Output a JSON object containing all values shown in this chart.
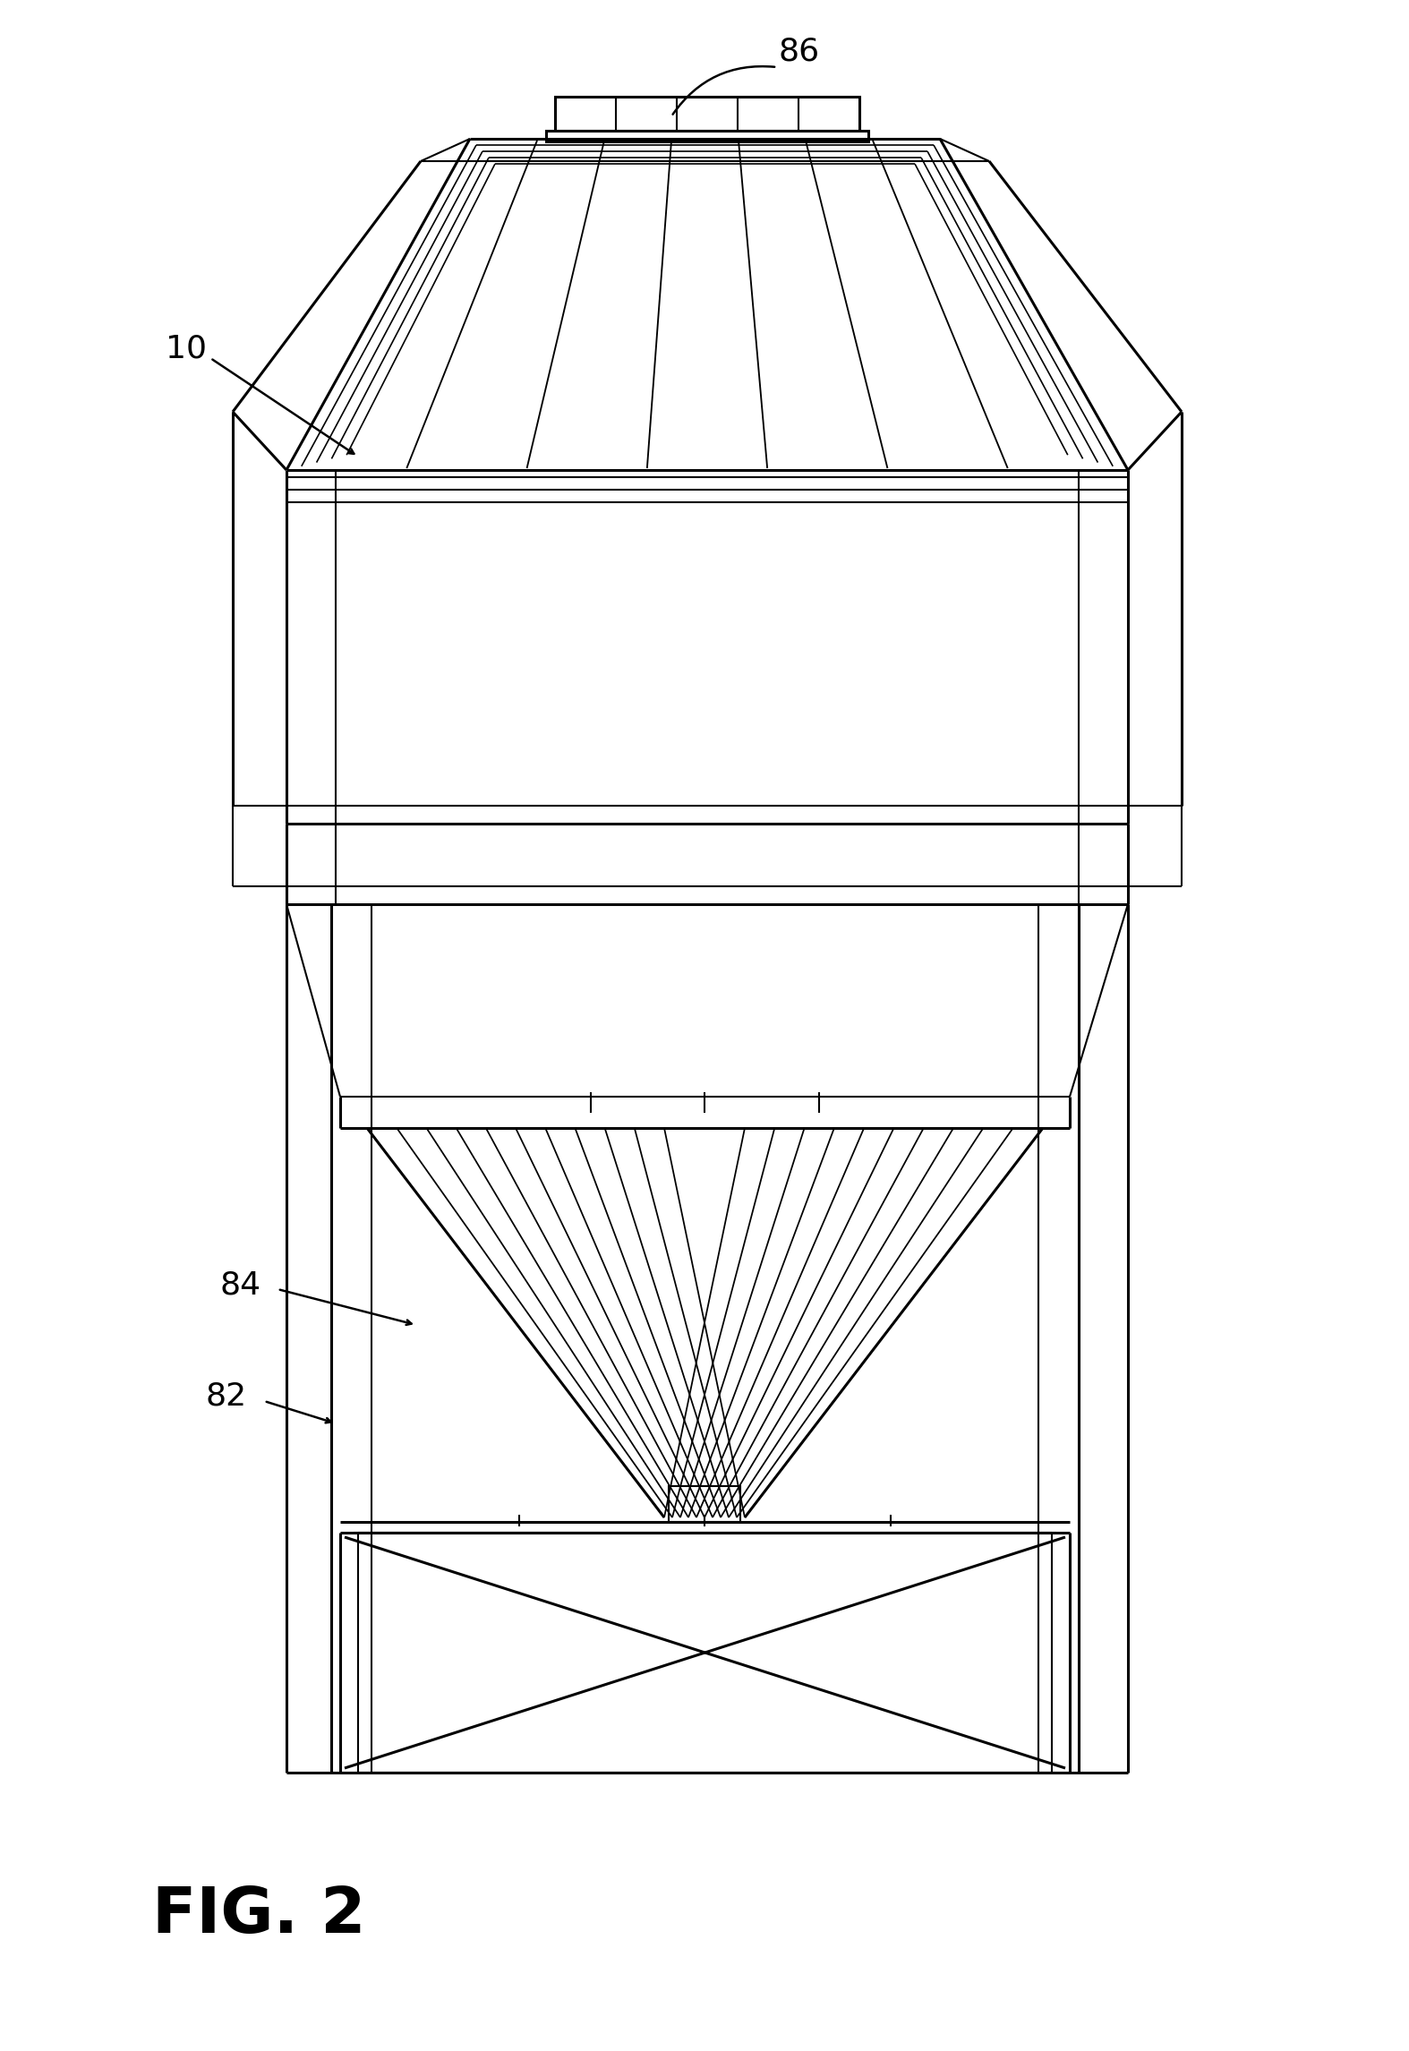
{
  "bg_color": "#ffffff",
  "lc": "#000000",
  "fig_label": "FIG. 2",
  "lw": 1.5,
  "tlw": 2.2
}
